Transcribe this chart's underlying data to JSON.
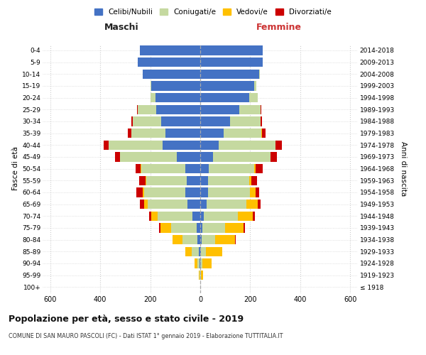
{
  "age_groups": [
    "100+",
    "95-99",
    "90-94",
    "85-89",
    "80-84",
    "75-79",
    "70-74",
    "65-69",
    "60-64",
    "55-59",
    "50-54",
    "45-49",
    "40-44",
    "35-39",
    "30-34",
    "25-29",
    "20-24",
    "15-19",
    "10-14",
    "5-9",
    "0-4"
  ],
  "birth_years": [
    "≤ 1918",
    "1919-1923",
    "1924-1928",
    "1929-1933",
    "1934-1938",
    "1939-1943",
    "1944-1948",
    "1949-1953",
    "1954-1958",
    "1959-1963",
    "1964-1968",
    "1969-1973",
    "1974-1978",
    "1979-1983",
    "1984-1988",
    "1989-1993",
    "1994-1998",
    "1999-2003",
    "2004-2008",
    "2009-2013",
    "2014-2018"
  ],
  "colors": {
    "celibi": "#4472c4",
    "coniugati": "#c5d9a0",
    "vedovi": "#ffc000",
    "divorziati": "#cc0000"
  },
  "maschi": {
    "celibi": [
      0,
      1,
      2,
      5,
      10,
      15,
      30,
      50,
      60,
      55,
      60,
      95,
      150,
      140,
      155,
      175,
      180,
      195,
      230,
      250,
      240
    ],
    "coniugati": [
      0,
      2,
      10,
      30,
      60,
      100,
      140,
      160,
      165,
      160,
      175,
      225,
      215,
      135,
      115,
      75,
      20,
      5,
      0,
      0,
      0
    ],
    "vedovi": [
      0,
      3,
      12,
      25,
      40,
      45,
      25,
      15,
      5,
      3,
      2,
      1,
      1,
      0,
      0,
      0,
      0,
      0,
      0,
      0,
      0
    ],
    "divorziati": [
      0,
      0,
      0,
      0,
      2,
      5,
      10,
      15,
      25,
      25,
      20,
      20,
      20,
      15,
      5,
      3,
      0,
      0,
      0,
      0,
      0
    ]
  },
  "femmine": {
    "nubili": [
      0,
      0,
      1,
      3,
      5,
      8,
      15,
      25,
      30,
      30,
      35,
      50,
      75,
      95,
      120,
      155,
      195,
      215,
      235,
      250,
      250
    ],
    "coniugate": [
      0,
      2,
      8,
      20,
      55,
      90,
      135,
      160,
      170,
      165,
      180,
      230,
      225,
      150,
      120,
      85,
      35,
      10,
      3,
      0,
      0
    ],
    "vedove": [
      0,
      8,
      35,
      65,
      80,
      75,
      60,
      45,
      20,
      8,
      5,
      2,
      2,
      1,
      0,
      0,
      0,
      0,
      0,
      0,
      0
    ],
    "divorziate": [
      0,
      0,
      0,
      0,
      2,
      5,
      8,
      12,
      15,
      25,
      30,
      25,
      25,
      15,
      8,
      3,
      0,
      0,
      0,
      0,
      0
    ]
  },
  "xlim": 630,
  "title": "Popolazione per età, sesso e stato civile - 2019",
  "subtitle": "COMUNE DI SAN MAURO PASCOLI (FC) - Dati ISTAT 1° gennaio 2019 - Elaborazione TUTTITALIA.IT",
  "ylabel_left": "Fasce di età",
  "ylabel_right": "Anni di nascita",
  "xlabel_left": "Maschi",
  "xlabel_right": "Femmine",
  "legend_labels": [
    "Celibi/Nubili",
    "Coniugati/e",
    "Vedovi/e",
    "Divorziati/e"
  ],
  "bg_color": "#ffffff",
  "grid_color": "#cccccc",
  "femmine_label_color": "#cc3333"
}
